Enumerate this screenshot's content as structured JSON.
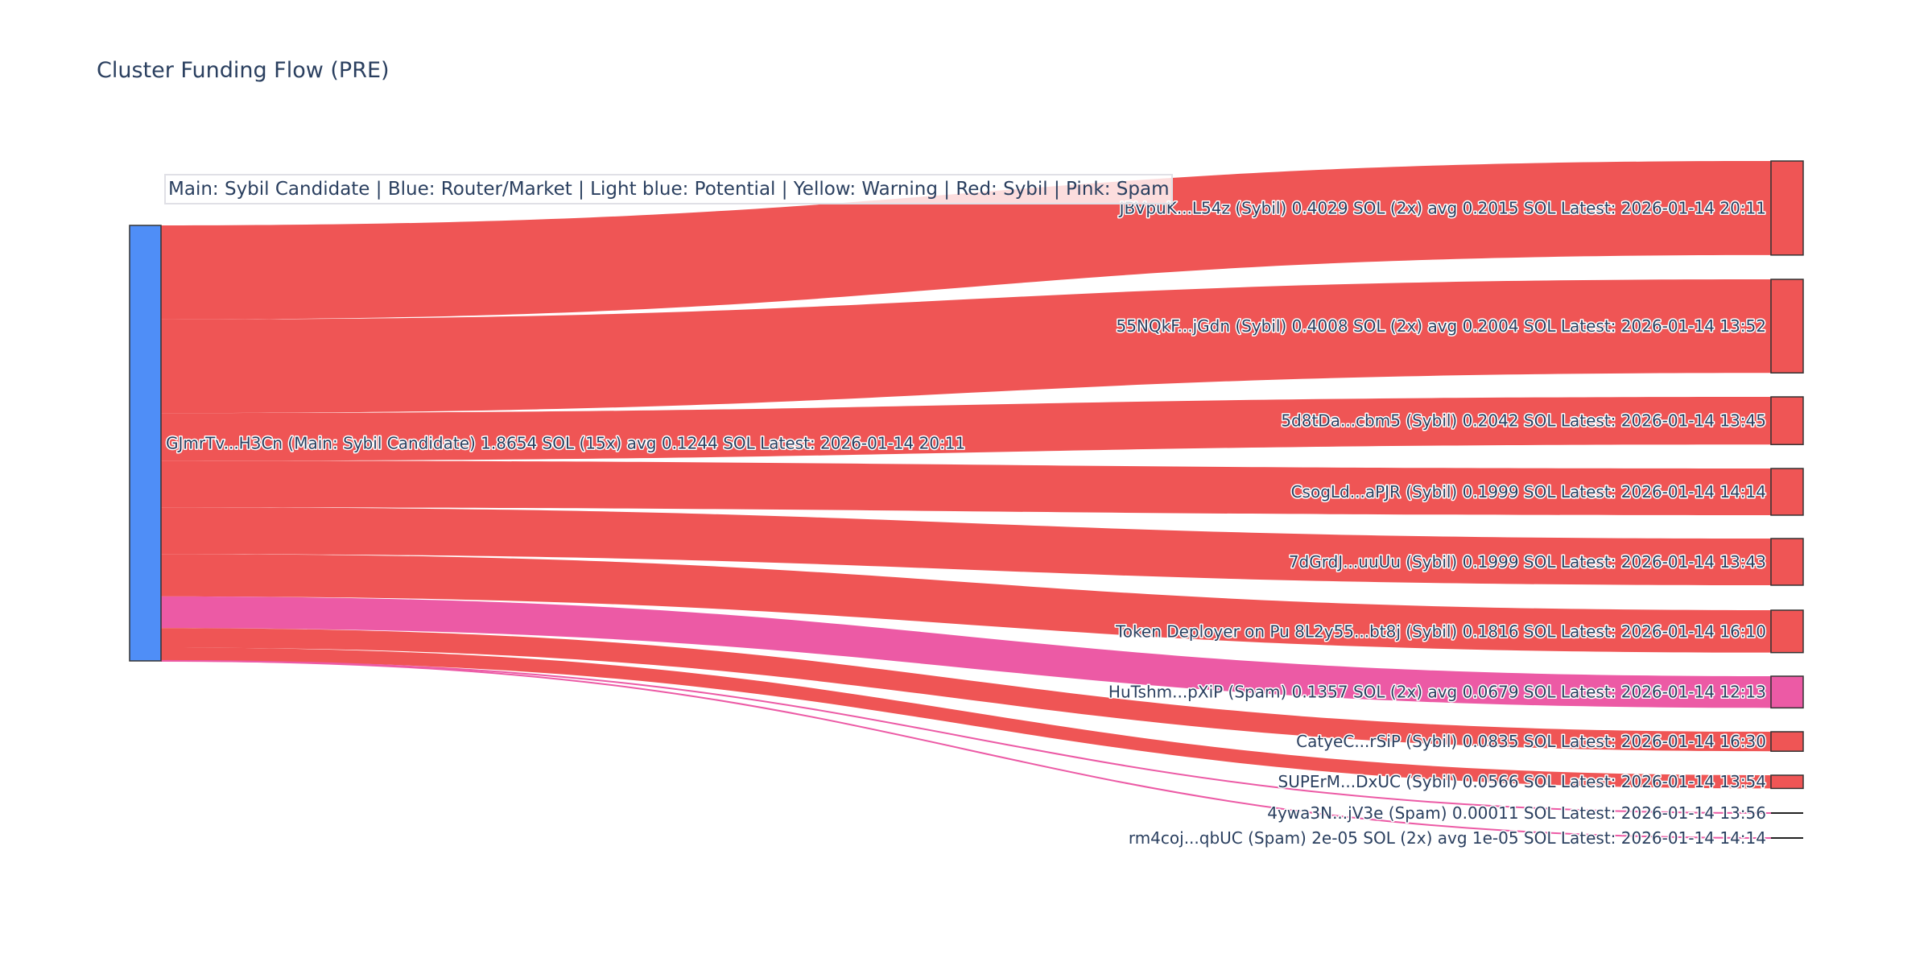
{
  "chart_data": {
    "type": "sankey",
    "title": "Cluster Funding Flow (PRE)",
    "legend_text": "Main: Sybil Candidate  |  Blue: Router/Market | Light blue: Potential | Yellow: Warning | Red: Sybil | Pink: Spam",
    "colors": {
      "main": "#4f8ef7",
      "sybil": "#ef5555",
      "spam": "#ec5aa5"
    },
    "source": {
      "label": "GJmrTv...H3Cn (Main: Sybil Candidate) 1.8654 SOL (15x) avg 0.1244 SOL Latest: 2026-01-14 20:11",
      "value": 1.8654,
      "category": "main"
    },
    "targets": [
      {
        "label": "JBVpuK...L54z (Sybil) 0.4029 SOL (2x) avg 0.2015 SOL Latest: 2026-01-14 20:11",
        "value": 0.4029,
        "category": "sybil"
      },
      {
        "label": "55NQkF...jGdn (Sybil) 0.4008 SOL (2x) avg 0.2004 SOL Latest: 2026-01-14 13:52",
        "value": 0.4008,
        "category": "sybil"
      },
      {
        "label": "5d8tDa...cbm5 (Sybil) 0.2042 SOL Latest: 2026-01-14 13:45",
        "value": 0.2042,
        "category": "sybil"
      },
      {
        "label": "CsogLd...aPJR (Sybil) 0.1999 SOL Latest: 2026-01-14 14:14",
        "value": 0.1999,
        "category": "sybil"
      },
      {
        "label": "7dGrdJ...uuUu (Sybil) 0.1999 SOL Latest: 2026-01-14 13:43",
        "value": 0.1999,
        "category": "sybil"
      },
      {
        "label": "Token Deployer on Pu 8L2y55...bt8j (Sybil) 0.1816 SOL Latest: 2026-01-14 16:10",
        "value": 0.1816,
        "category": "sybil"
      },
      {
        "label": "HuTshm...pXiP (Spam) 0.1357 SOL (2x) avg 0.0679 SOL Latest: 2026-01-14 12:13",
        "value": 0.1357,
        "category": "spam"
      },
      {
        "label": "CatyeC...rSiP (Sybil) 0.0835 SOL Latest: 2026-01-14 16:30",
        "value": 0.0835,
        "category": "sybil"
      },
      {
        "label": "SUPErM...DxUC (Sybil) 0.0566 SOL Latest: 2026-01-14 13:54",
        "value": 0.0566,
        "category": "sybil"
      },
      {
        "label": "4ywa3N...jV3e (Spam) 0.00011 SOL Latest: 2026-01-14 13:56",
        "value": 0.00011,
        "category": "spam"
      },
      {
        "label": "rm4coj...qbUC (Spam) 2e-05 SOL (2x) avg 1e-05 SOL Latest: 2026-01-14 14:14",
        "value": 2e-05,
        "category": "spam"
      }
    ]
  }
}
